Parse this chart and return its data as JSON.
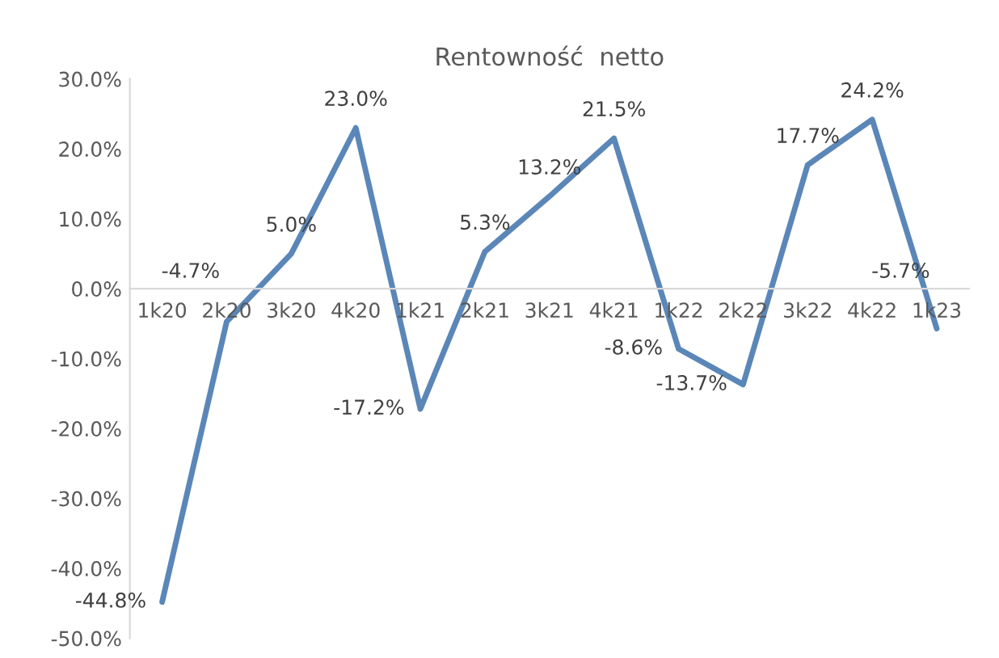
{
  "chart_data": {
    "type": "line",
    "title": "Rentowność  netto",
    "categories": [
      "1k20",
      "2k20",
      "3k20",
      "4k20",
      "1k21",
      "2k21",
      "3k21",
      "4k21",
      "1k22",
      "2k22",
      "3k22",
      "4k22",
      "1k23"
    ],
    "series": [
      {
        "color": "#5b86b8",
        "values": [
          -44.8,
          -4.7,
          5.0,
          23.0,
          -17.2,
          5.3,
          13.2,
          21.5,
          -8.6,
          -13.7,
          17.7,
          24.2,
          -5.7
        ]
      }
    ],
    "ylim": [
      -50,
      30
    ],
    "yticks": [
      {
        "value": -50,
        "label": "-50.0%"
      },
      {
        "value": -40,
        "label": "-40.0%"
      },
      {
        "value": -30,
        "label": "-30.0%"
      },
      {
        "value": -20,
        "label": "-20.0%"
      },
      {
        "value": -10,
        "label": "-10.0%"
      },
      {
        "value": 0,
        "label": "0.0%"
      },
      {
        "value": 10,
        "label": "10.0%"
      },
      {
        "value": 20,
        "label": "20.0%"
      },
      {
        "value": 30,
        "label": "30.0%"
      }
    ],
    "value_labels": [
      "-44.8%",
      "-4.7%",
      "5.0%",
      "23.0%",
      "-17.2%",
      "5.3%",
      "13.2%",
      "21.5%",
      "-8.6%",
      "-13.7%",
      "17.7%",
      "24.2%",
      "-5.7%"
    ],
    "grid": false,
    "legend": false,
    "marker": "none",
    "line_style": "solid"
  }
}
